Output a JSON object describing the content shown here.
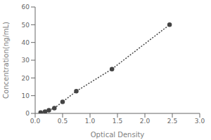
{
  "chart_data": {
    "type": "line",
    "xlabel": "Optical Density",
    "ylabel": "Concentration(ng/mL)",
    "x": [
      0.1,
      0.18,
      0.25,
      0.35,
      0.5,
      0.75,
      1.4,
      2.45
    ],
    "values": [
      0.5,
      1.0,
      1.8,
      3.0,
      6.5,
      12.5,
      25.0,
      50.0
    ],
    "xlim": [
      0,
      3
    ],
    "ylim": [
      0,
      60
    ],
    "xticks": [
      {
        "value": 0,
        "label": "0.0"
      },
      0.5,
      {
        "value": 1,
        "label": "1.0"
      },
      1.5,
      {
        "value": 2,
        "label": "2.0"
      },
      2.5,
      {
        "value": 3,
        "label": "3.0"
      }
    ],
    "yticks": [
      0,
      10,
      20,
      30,
      40,
      50,
      60
    ],
    "color": "#444444",
    "line_style": "dotted",
    "marker": "circle",
    "grid": false
  }
}
